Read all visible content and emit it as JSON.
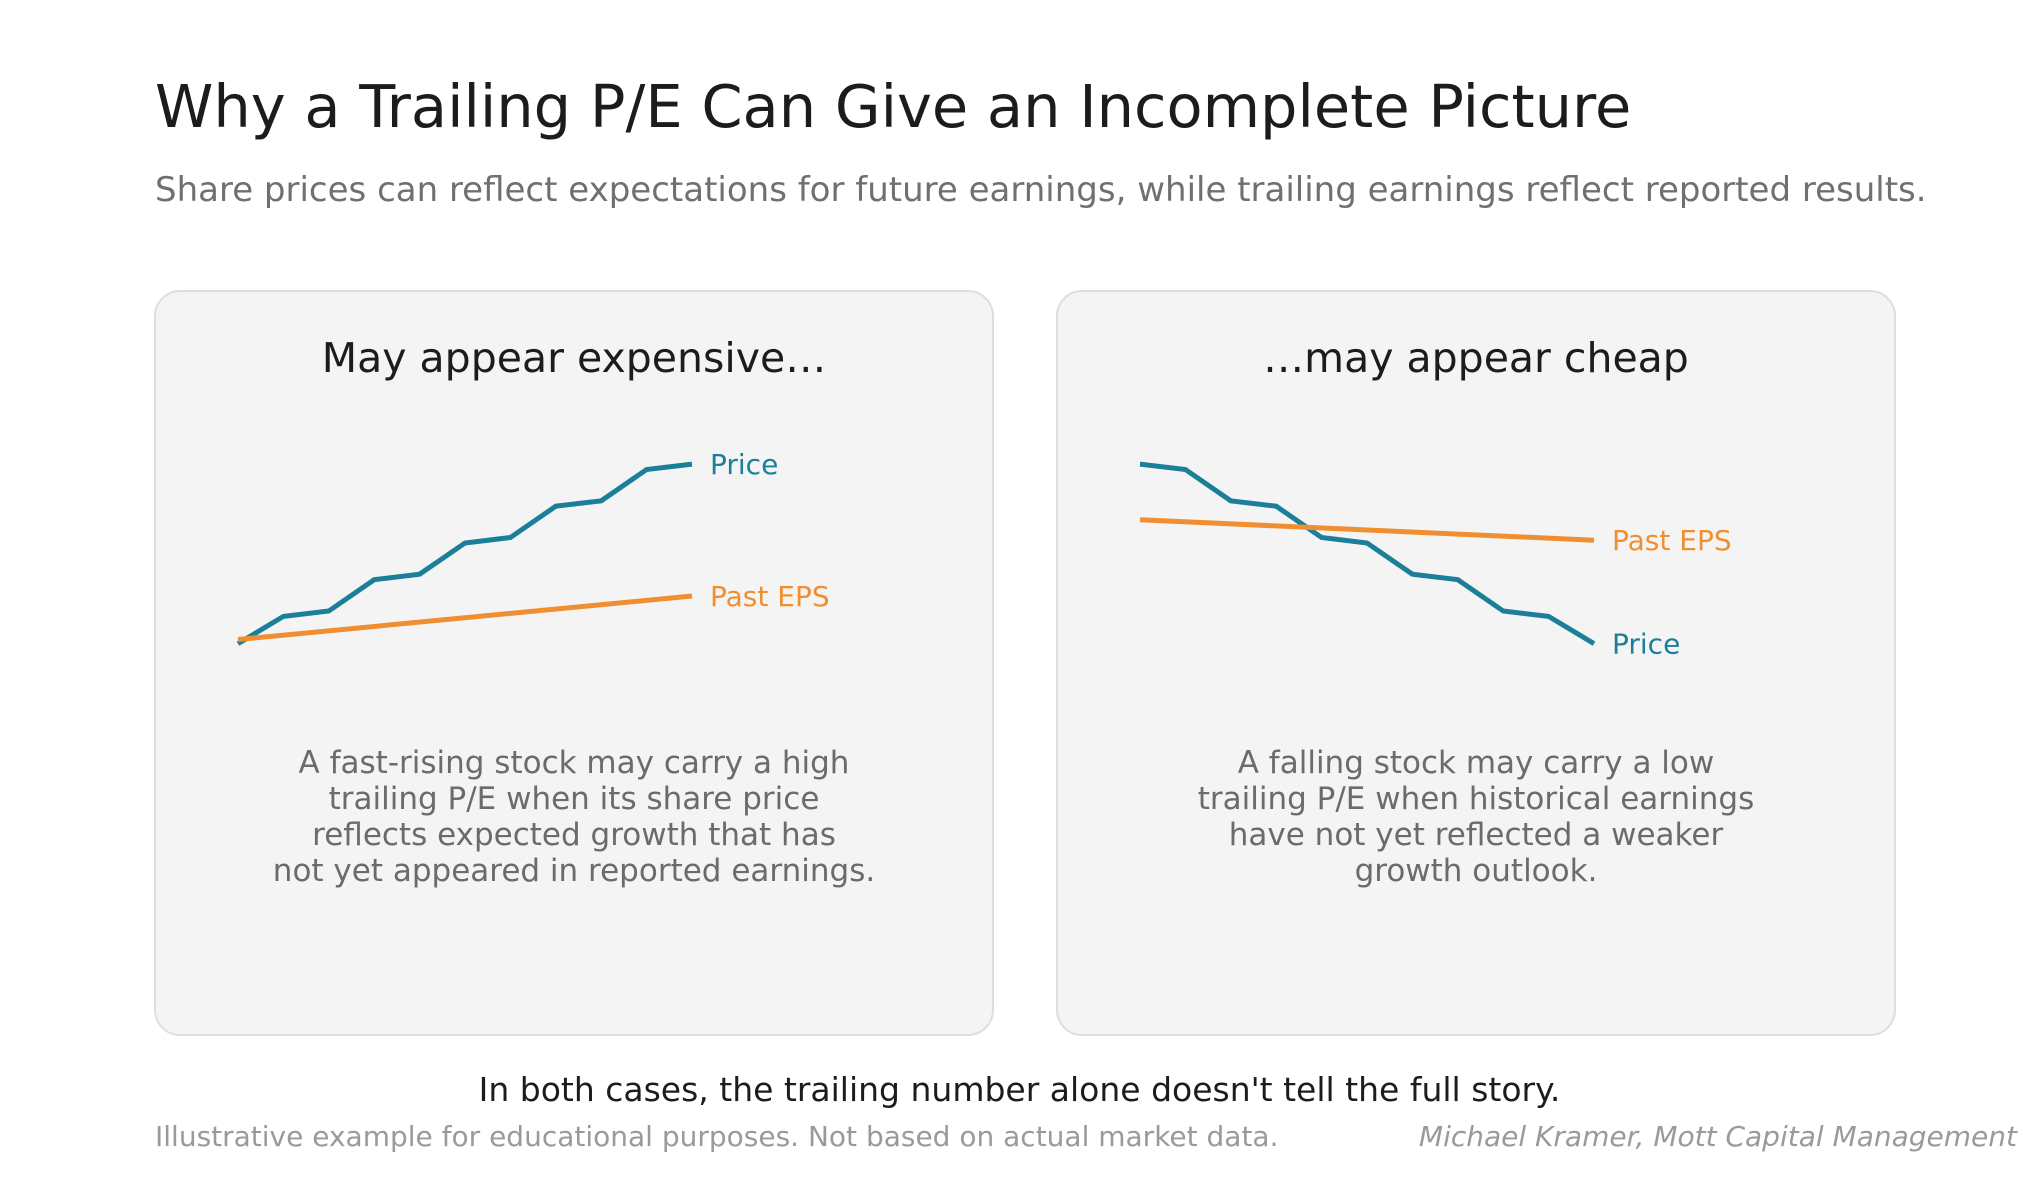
{
  "header": {
    "title": "Why a Trailing P/E Can Give an Incomplete Picture",
    "subtitle": "Share prices can reflect expectations for future earnings, while trailing earnings reflect reported results."
  },
  "colors": {
    "price": "#1b7f99",
    "eps": "#ef8f32",
    "panel_background": "#f4f4f4",
    "panel_border": "#dedede"
  },
  "chart_data": [
    {
      "type": "line",
      "title": "May appear expensive…",
      "xlabel": "",
      "ylabel": "",
      "axes_visible": false,
      "grid": false,
      "ylim": [
        0,
        15
      ],
      "series": [
        {
          "name": "Price",
          "color": "#1b7f99",
          "x": [
            0,
            1,
            2,
            3,
            4,
            5,
            6,
            7,
            8,
            9,
            10
          ],
          "values": [
            1.5,
            3.5,
            3.9,
            6.2,
            6.6,
            8.9,
            9.3,
            11.6,
            12.0,
            14.3,
            14.7
          ]
        },
        {
          "name": "Past EPS",
          "color": "#ef8f32",
          "x": [
            0,
            10
          ],
          "values": [
            1.8,
            5.0
          ]
        }
      ],
      "description": [
        "A fast-rising stock may carry a high",
        "trailing P/E when its share price",
        "reflects expected growth that has",
        "not yet appeared in reported earnings."
      ]
    },
    {
      "type": "line",
      "title": "…may appear cheap",
      "xlabel": "",
      "ylabel": "",
      "axes_visible": false,
      "grid": false,
      "ylim": [
        0,
        15
      ],
      "series": [
        {
          "name": "Price",
          "color": "#1b7f99",
          "x": [
            0,
            1,
            2,
            3,
            4,
            5,
            6,
            7,
            8,
            9,
            10
          ],
          "values": [
            14.7,
            14.3,
            12.0,
            11.6,
            9.3,
            8.9,
            6.6,
            6.2,
            3.9,
            3.5,
            1.5
          ]
        },
        {
          "name": "Past EPS",
          "color": "#ef8f32",
          "x": [
            0,
            10
          ],
          "values": [
            10.6,
            9.1
          ]
        }
      ],
      "description": [
        "A falling stock may carry a low",
        "trailing P/E when historical earnings",
        "have not yet reflected a weaker",
        "growth outlook."
      ]
    }
  ],
  "footer": {
    "conclusion": "In both cases, the trailing number alone doesn't tell the full story.",
    "disclaimer": "Illustrative example for educational purposes. Not based on actual market data.",
    "credit": "Michael Kramer, Mott Capital Management"
  }
}
